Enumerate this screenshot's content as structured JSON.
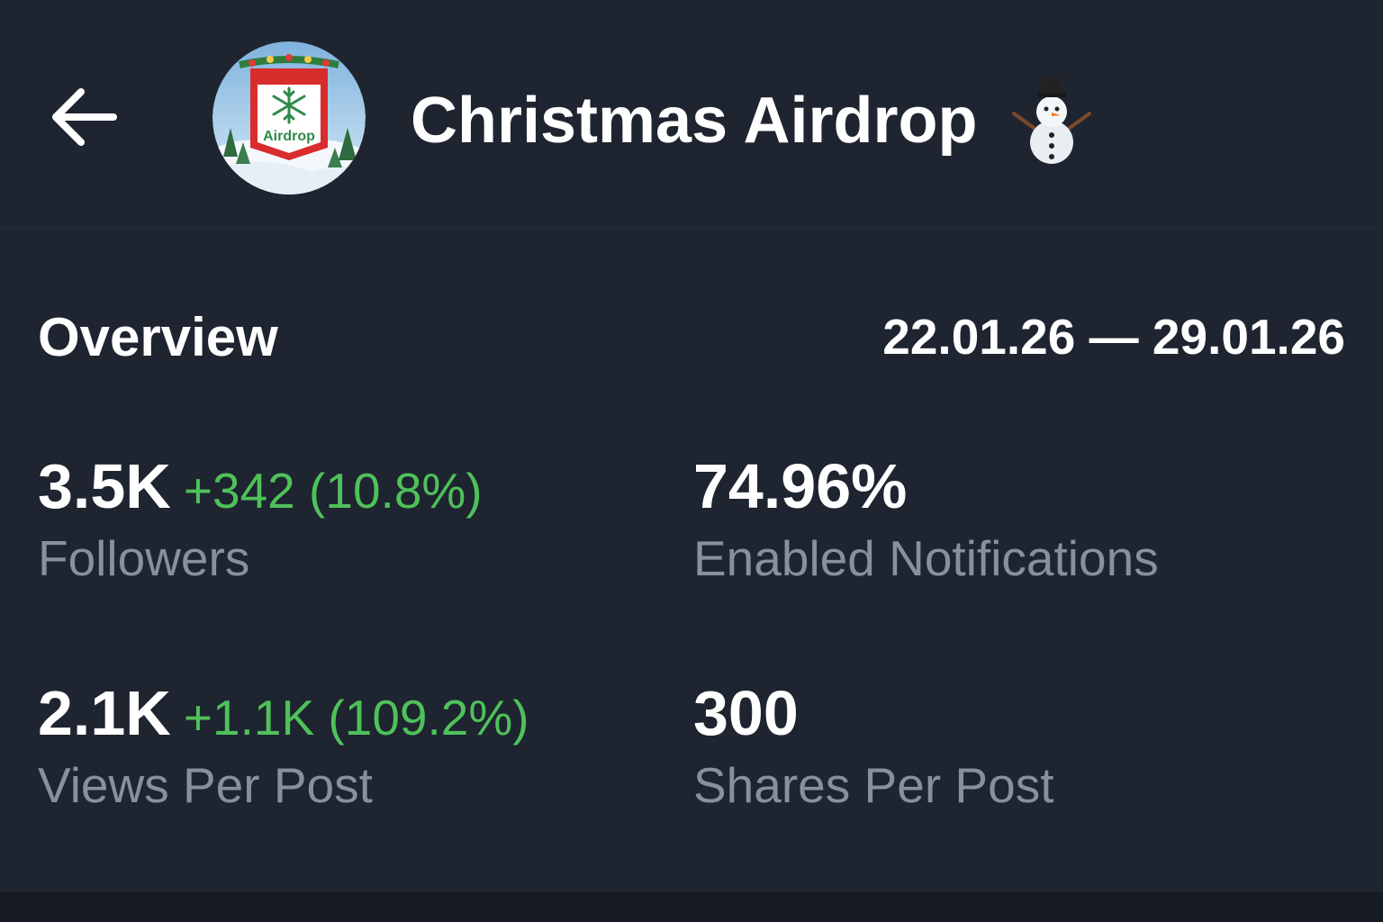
{
  "header": {
    "back_icon": "arrow-left-icon",
    "channel_title": "Christmas Airdrop",
    "title_emoji": "snowman-icon",
    "avatar": {
      "label": "Airdrop",
      "icon": "snowflake-icon"
    }
  },
  "overview": {
    "title": "Overview",
    "date_range": "22.01.26 — 29.01.26",
    "stats": [
      {
        "value": "3.5K",
        "change": "+342 (10.8%)",
        "label": "Followers"
      },
      {
        "value": "74.96%",
        "change": "",
        "label": "Enabled Notifications"
      },
      {
        "value": "2.1K",
        "change": "+1.1K (109.2%)",
        "label": "Views Per Post"
      },
      {
        "value": "300",
        "change": "",
        "label": "Shares Per Post"
      }
    ]
  },
  "colors": {
    "background": "#1f2531",
    "positive_change": "#4fc15a",
    "label_gray": "#8a909b",
    "text_white": "#ffffff"
  }
}
